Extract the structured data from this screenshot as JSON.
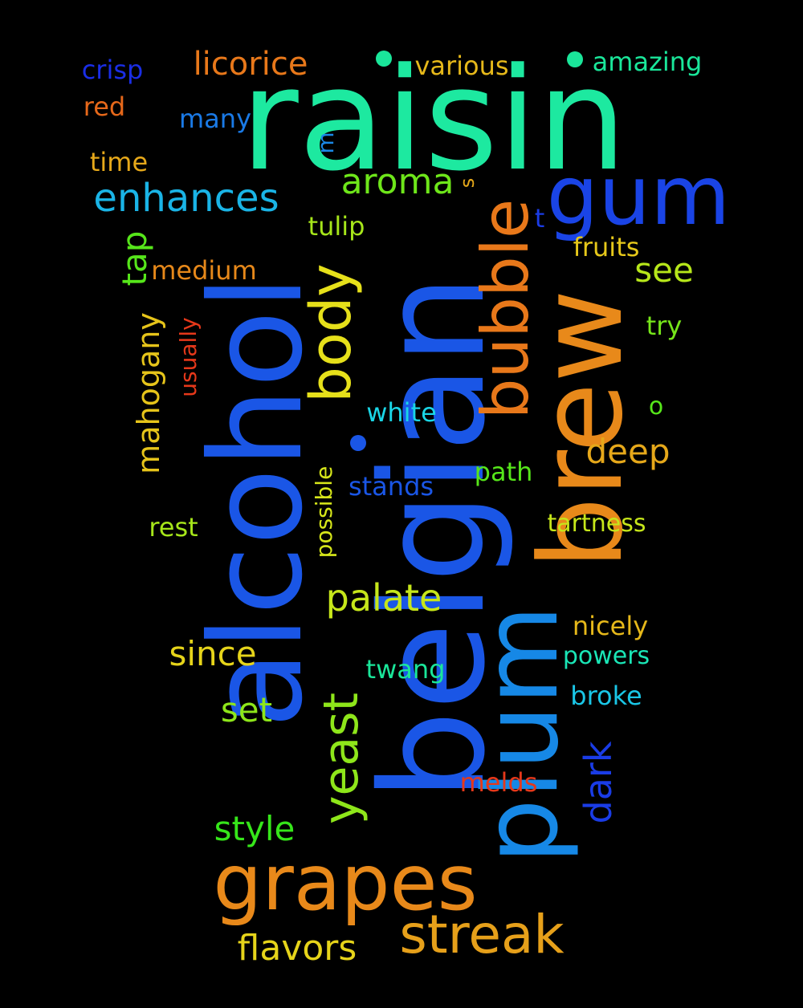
{
  "canvas": {
    "background": "#000000"
  },
  "words": [
    {
      "id": "raisin",
      "text": "raisin",
      "color": "#1de9a0"
    },
    {
      "id": "belgian",
      "text": "belgian",
      "color": "#1a56e6"
    },
    {
      "id": "alcohol",
      "text": "alcohol",
      "color": "#1a56e6"
    },
    {
      "id": "brew",
      "text": "brew",
      "color": "#e8891a"
    },
    {
      "id": "plum",
      "text": "plum",
      "color": "#1688e6"
    },
    {
      "id": "grapes",
      "text": "grapes",
      "color": "#e8891a"
    },
    {
      "id": "gum",
      "text": "gum",
      "color": "#1a44e6"
    },
    {
      "id": "bubble",
      "text": "bubble",
      "color": "#e8781a"
    },
    {
      "id": "streak",
      "text": "streak",
      "color": "#e6a01a"
    },
    {
      "id": "body",
      "text": "body",
      "color": "#e6e01a"
    },
    {
      "id": "yeast",
      "text": "yeast",
      "color": "#8ee61a"
    },
    {
      "id": "enhances",
      "text": "enhances",
      "color": "#1ab4e6"
    },
    {
      "id": "palate",
      "text": "palate",
      "color": "#c6e61a"
    },
    {
      "id": "licorice",
      "text": "licorice",
      "color": "#e8781a"
    },
    {
      "id": "aroma",
      "text": "aroma",
      "color": "#6ee61a"
    },
    {
      "id": "flavors",
      "text": "flavors",
      "color": "#e6d41a"
    },
    {
      "id": "mahogany",
      "text": "mahogany",
      "color": "#e6c41a"
    },
    {
      "id": "dark",
      "text": "dark",
      "color": "#1a3ce6"
    },
    {
      "id": "style",
      "text": "style",
      "color": "#36e61a"
    },
    {
      "id": "since",
      "text": "since",
      "color": "#e6d41a"
    },
    {
      "id": "deep",
      "text": "deep",
      "color": "#e6a81a"
    },
    {
      "id": "set",
      "text": "set",
      "color": "#8ee61a"
    },
    {
      "id": "see",
      "text": "see",
      "color": "#b6e61a"
    },
    {
      "id": "tap",
      "text": "tap",
      "color": "#56e61a"
    },
    {
      "id": "various",
      "text": "various",
      "color": "#e6b81a"
    },
    {
      "id": "amazing",
      "text": "amazing",
      "color": "#1ae69a"
    },
    {
      "id": "crisp",
      "text": "crisp",
      "color": "#1a2ee6"
    },
    {
      "id": "red",
      "text": "red",
      "color": "#e6681a"
    },
    {
      "id": "many",
      "text": "many",
      "color": "#1a7ae6"
    },
    {
      "id": "time",
      "text": "time",
      "color": "#e6a81a"
    },
    {
      "id": "medium",
      "text": "medium",
      "color": "#e6881a"
    },
    {
      "id": "tulip",
      "text": "tulip",
      "color": "#a6e61a"
    },
    {
      "id": "fruits",
      "text": "fruits",
      "color": "#e6c81a"
    },
    {
      "id": "try",
      "text": "try",
      "color": "#76e61a"
    },
    {
      "id": "usually",
      "text": "usually",
      "color": "#e6381a"
    },
    {
      "id": "white",
      "text": "white",
      "color": "#1ad6e6"
    },
    {
      "id": "possible",
      "text": "possible",
      "color": "#d6e61a"
    },
    {
      "id": "stands",
      "text": "stands",
      "color": "#1a56e6"
    },
    {
      "id": "path",
      "text": "path",
      "color": "#56e61a"
    },
    {
      "id": "tartness",
      "text": "tartness",
      "color": "#c6e61a"
    },
    {
      "id": "rest",
      "text": "rest",
      "color": "#a6e61a"
    },
    {
      "id": "nicely",
      "text": "nicely",
      "color": "#e6b81a"
    },
    {
      "id": "powers",
      "text": "powers",
      "color": "#1ae6b6"
    },
    {
      "id": "twang",
      "text": "twang",
      "color": "#1ae69a"
    },
    {
      "id": "broke",
      "text": "broke",
      "color": "#1ac6e6"
    },
    {
      "id": "melds",
      "text": "melds",
      "color": "#e6381a"
    },
    {
      "id": "m",
      "text": "m",
      "color": "#1a88e6"
    },
    {
      "id": "s",
      "text": "s",
      "color": "#e6a81a"
    },
    {
      "id": "t",
      "text": "t",
      "color": "#1a3ce6"
    },
    {
      "id": "o",
      "text": "o",
      "color": "#56e61a"
    }
  ],
  "dots": [
    {
      "id": "dot-1",
      "color": "#1ae69a"
    },
    {
      "id": "dot-2",
      "color": "#1ae69a"
    },
    {
      "id": "dot-3",
      "color": "#1a56e6"
    }
  ]
}
